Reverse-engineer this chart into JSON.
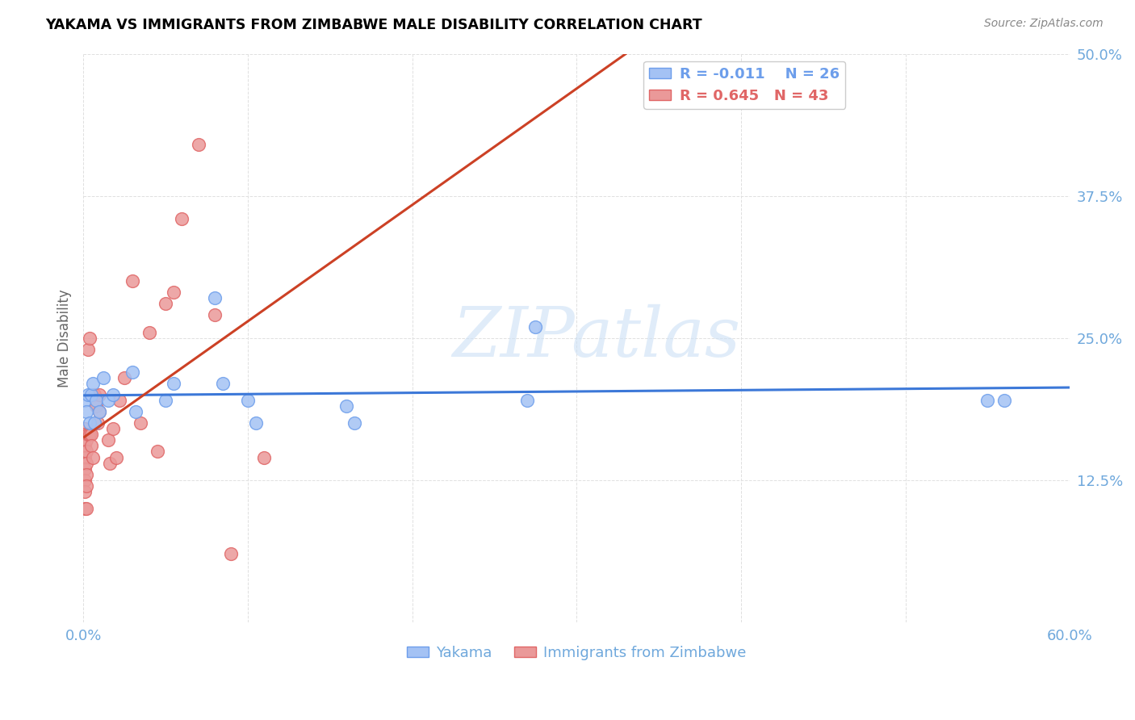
{
  "title": "YAKAMA VS IMMIGRANTS FROM ZIMBABWE MALE DISABILITY CORRELATION CHART",
  "source": "Source: ZipAtlas.com",
  "ylabel_label": "Male Disability",
  "xlim": [
    0.0,
    0.6
  ],
  "ylim": [
    0.0,
    0.5
  ],
  "background_color": "#ffffff",
  "watermark_text": "ZIPatlas",
  "yakama_R": -0.011,
  "yakama_N": 26,
  "zimbabwe_R": 0.645,
  "zimbabwe_N": 43,
  "yakama_fill_color": "#a4c2f4",
  "yakama_edge_color": "#6d9eeb",
  "zimbabwe_fill_color": "#ea9999",
  "zimbabwe_edge_color": "#e06666",
  "yakama_line_color": "#3c78d8",
  "zimbabwe_line_color": "#cc4125",
  "tick_color": "#6fa8dc",
  "title_color": "#000000",
  "source_color": "#888888",
  "ylabel_color": "#666666",
  "grid_color": "#e0e0e0",
  "legend_text_color_yak": "#6d9eeb",
  "legend_text_color_zim": "#e06666",
  "yakama_x": [
    0.001,
    0.002,
    0.003,
    0.004,
    0.005,
    0.006,
    0.007,
    0.008,
    0.01,
    0.012,
    0.015,
    0.018,
    0.03,
    0.032,
    0.05,
    0.055,
    0.08,
    0.085,
    0.1,
    0.105,
    0.16,
    0.165,
    0.27,
    0.55,
    0.56,
    0.275
  ],
  "yakama_y": [
    0.195,
    0.185,
    0.2,
    0.175,
    0.2,
    0.21,
    0.175,
    0.195,
    0.185,
    0.215,
    0.195,
    0.2,
    0.22,
    0.185,
    0.195,
    0.21,
    0.285,
    0.21,
    0.195,
    0.175,
    0.19,
    0.175,
    0.195,
    0.195,
    0.195,
    0.26
  ],
  "zimbabwe_x": [
    0.001,
    0.001,
    0.001,
    0.001,
    0.001,
    0.001,
    0.001,
    0.001,
    0.002,
    0.002,
    0.002,
    0.002,
    0.002,
    0.002,
    0.003,
    0.003,
    0.004,
    0.004,
    0.005,
    0.005,
    0.006,
    0.007,
    0.008,
    0.009,
    0.01,
    0.01,
    0.015,
    0.016,
    0.018,
    0.02,
    0.022,
    0.025,
    0.03,
    0.035,
    0.04,
    0.045,
    0.05,
    0.055,
    0.06,
    0.07,
    0.08,
    0.09,
    0.11
  ],
  "zimbabwe_y": [
    0.17,
    0.165,
    0.155,
    0.145,
    0.135,
    0.125,
    0.115,
    0.1,
    0.16,
    0.15,
    0.14,
    0.13,
    0.12,
    0.1,
    0.165,
    0.24,
    0.165,
    0.25,
    0.165,
    0.155,
    0.145,
    0.2,
    0.19,
    0.175,
    0.2,
    0.185,
    0.16,
    0.14,
    0.17,
    0.145,
    0.195,
    0.215,
    0.3,
    0.175,
    0.255,
    0.15,
    0.28,
    0.29,
    0.355,
    0.42,
    0.27,
    0.06,
    0.145
  ],
  "yakama_trendline_x": [
    0.0,
    0.6
  ],
  "zimbabwe_trendline_x_start": 0.0,
  "zimbabwe_trendline_x_end": 0.45,
  "xtick_vals": [
    0.0,
    0.1,
    0.2,
    0.3,
    0.4,
    0.5,
    0.6
  ],
  "xtick_labels": [
    "0.0%",
    "",
    "",
    "",
    "",
    "",
    "60.0%"
  ],
  "ytick_vals": [
    0.0,
    0.125,
    0.25,
    0.375,
    0.5
  ],
  "ytick_labels": [
    "",
    "12.5%",
    "25.0%",
    "37.5%",
    "50.0%"
  ]
}
